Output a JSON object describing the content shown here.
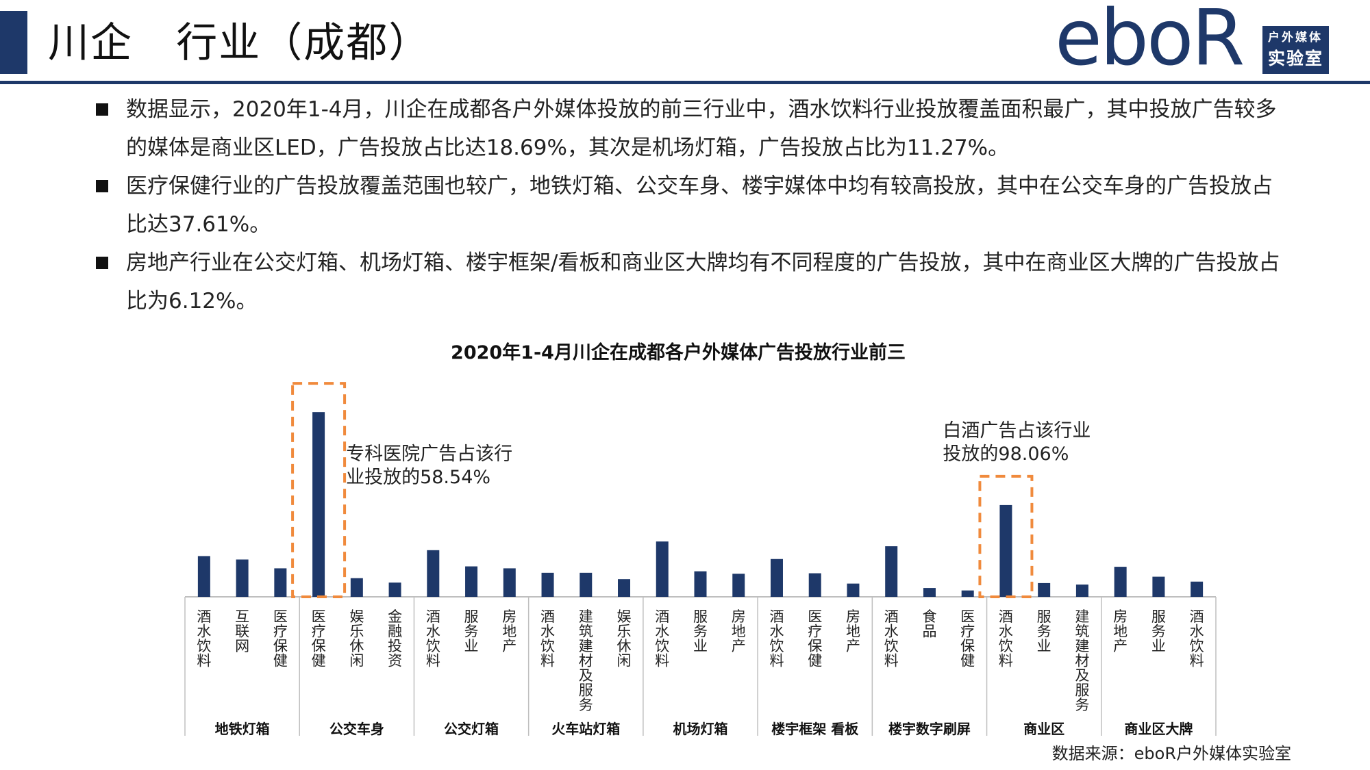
{
  "header": {
    "title": "川企   行业（成都）",
    "logo_word": "eboR",
    "logo_sub1": "户外媒体",
    "logo_sub2": "实验室"
  },
  "bullets": [
    "数据显示，2020年1-4月，川企在成都各户外媒体投放的前三行业中，酒水饮料行业投放覆盖面积最广，其中投放广告较多的媒体是商业区LED，广告投放占比达18.69%，其次是机场灯箱，广告投放占比为11.27%。",
    "医疗保健行业的广告投放覆盖范围也较广，地铁灯箱、公交车身、楼宇媒体中均有较高投放，其中在公交车身的广告投放占比达37.61%。",
    "房地产行业在公交灯箱、机场灯箱、楼宇框架/看板和商业区大牌均有不同程度的广告投放，其中在商业区大牌的广告投放占比为6.12%。"
  ],
  "chart_data": {
    "type": "bar",
    "title": "2020年1-4月川企在成都各户外媒体广告投放行业前三",
    "xlabel": "",
    "ylabel": "",
    "ylim": [
      0,
      40
    ],
    "grid": false,
    "legend": "none",
    "colors": {
      "bar": "#1e3869",
      "highlight": "#f08a3c",
      "axis": "#bfbfbf"
    },
    "groups": [
      {
        "name": "地铁灯箱",
        "items": [
          {
            "label": "酒水饮料",
            "value": 8.3
          },
          {
            "label": "互联网",
            "value": 7.6
          },
          {
            "label": "医疗保健",
            "value": 5.8
          }
        ]
      },
      {
        "name": "公交车身",
        "items": [
          {
            "label": "医疗保健",
            "value": 37.61
          },
          {
            "label": "娱乐休闲",
            "value": 3.8
          },
          {
            "label": "金融投资",
            "value": 2.9
          }
        ]
      },
      {
        "name": "公交灯箱",
        "items": [
          {
            "label": "酒水饮料",
            "value": 9.5
          },
          {
            "label": "服务业",
            "value": 6.2
          },
          {
            "label": "房地产",
            "value": 5.8
          }
        ]
      },
      {
        "name": "火车站灯箱",
        "items": [
          {
            "label": "酒水饮料",
            "value": 4.9
          },
          {
            "label": "建筑建材及服务",
            "value": 4.9
          },
          {
            "label": "娱乐休闲",
            "value": 3.6
          }
        ]
      },
      {
        "name": "机场灯箱",
        "items": [
          {
            "label": "酒水饮料",
            "value": 11.27
          },
          {
            "label": "服务业",
            "value": 5.2
          },
          {
            "label": "房地产",
            "value": 4.7
          }
        ]
      },
      {
        "name": "楼宇框架 看板",
        "items": [
          {
            "label": "酒水饮料",
            "value": 7.7
          },
          {
            "label": "医疗保健",
            "value": 4.8
          },
          {
            "label": "房地产",
            "value": 2.7
          }
        ]
      },
      {
        "name": "楼宇数字刷屏",
        "items": [
          {
            "label": "酒水饮料",
            "value": 10.3
          },
          {
            "label": "食品",
            "value": 1.8
          },
          {
            "label": "医疗保健",
            "value": 1.3
          }
        ]
      },
      {
        "name": "商业区",
        "items": [
          {
            "label": "酒水饮料",
            "value": 18.69
          },
          {
            "label": "服务业",
            "value": 2.8
          },
          {
            "label": "建筑建材及服务",
            "value": 2.5
          }
        ]
      },
      {
        "name": "商业区大牌",
        "items": [
          {
            "label": "房地产",
            "value": 6.12
          },
          {
            "label": "服务业",
            "value": 4.1
          },
          {
            "label": "酒水饮料",
            "value": 3.1
          }
        ]
      }
    ],
    "annotations": [
      {
        "group": 1,
        "item": 0,
        "text_lines": [
          "专科医院广告占该行",
          "业投放的58.54%"
        ],
        "side": "right"
      },
      {
        "group": 7,
        "item": 0,
        "text_lines": [
          "白酒广告占该行业",
          "投放的98.06%"
        ],
        "side": "above"
      }
    ]
  },
  "source": "数据来源：eboR户外媒体实验室"
}
